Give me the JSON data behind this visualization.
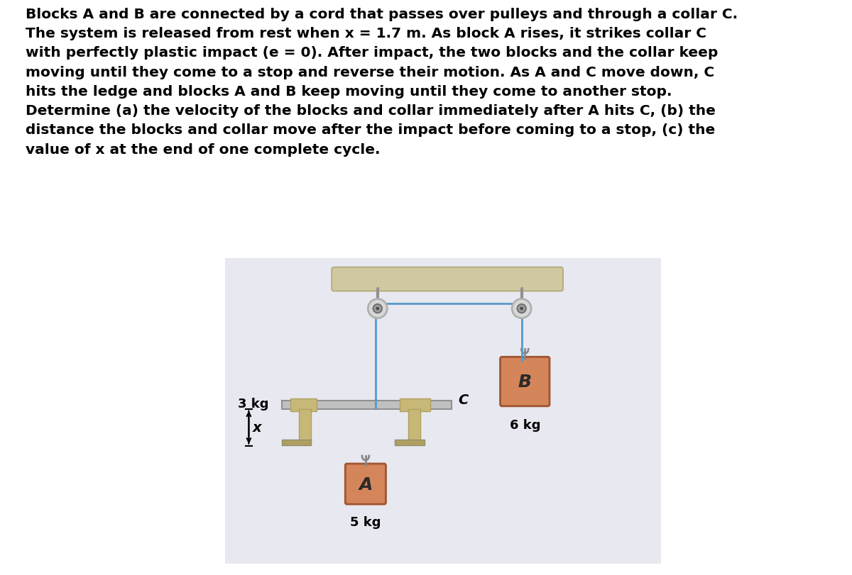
{
  "bg_color": "#ffffff",
  "diagram_bg": "#e8e8f0",
  "text_color": "#000000",
  "problem_text": "Blocks A and B are connected by a cord that passes over pulleys and through a collar C.\nThe system is released from rest when x = 1.7 m. As block A rises, it strikes collar C\nwith perfectly plastic impact (e = 0). After impact, the two blocks and the collar keep\nmoving until they come to a stop and reverse their motion. As A and C move down, C\nhits the ledge and blocks A and B keep moving until they come to another stop.\nDetermine (a) the velocity of the blocks and collar immediately after A hits C, (b) the\ndistance the blocks and collar move after the impact before coming to a stop, (c) the\nvalue of x at the end of one complete cycle.",
  "block_A_label": "A",
  "block_A_mass": "5 kg",
  "block_B_label": "B",
  "block_B_mass": "6 kg",
  "collar_label": "C",
  "collar_mass": "3 kg",
  "x_label": "x",
  "rope_color": "#5599cc",
  "block_fill_light": "#d4855a",
  "block_fill_dark": "#c07040",
  "block_border": "#a05530",
  "ledge_color": "#c8b878",
  "ledge_dark": "#b0a060",
  "support_color": "#d0c080",
  "ceiling_color": "#d0c8a0",
  "pulley_outer": "#b0b0b0",
  "pulley_inner": "#d8d8d8",
  "pulley_center": "#888888"
}
